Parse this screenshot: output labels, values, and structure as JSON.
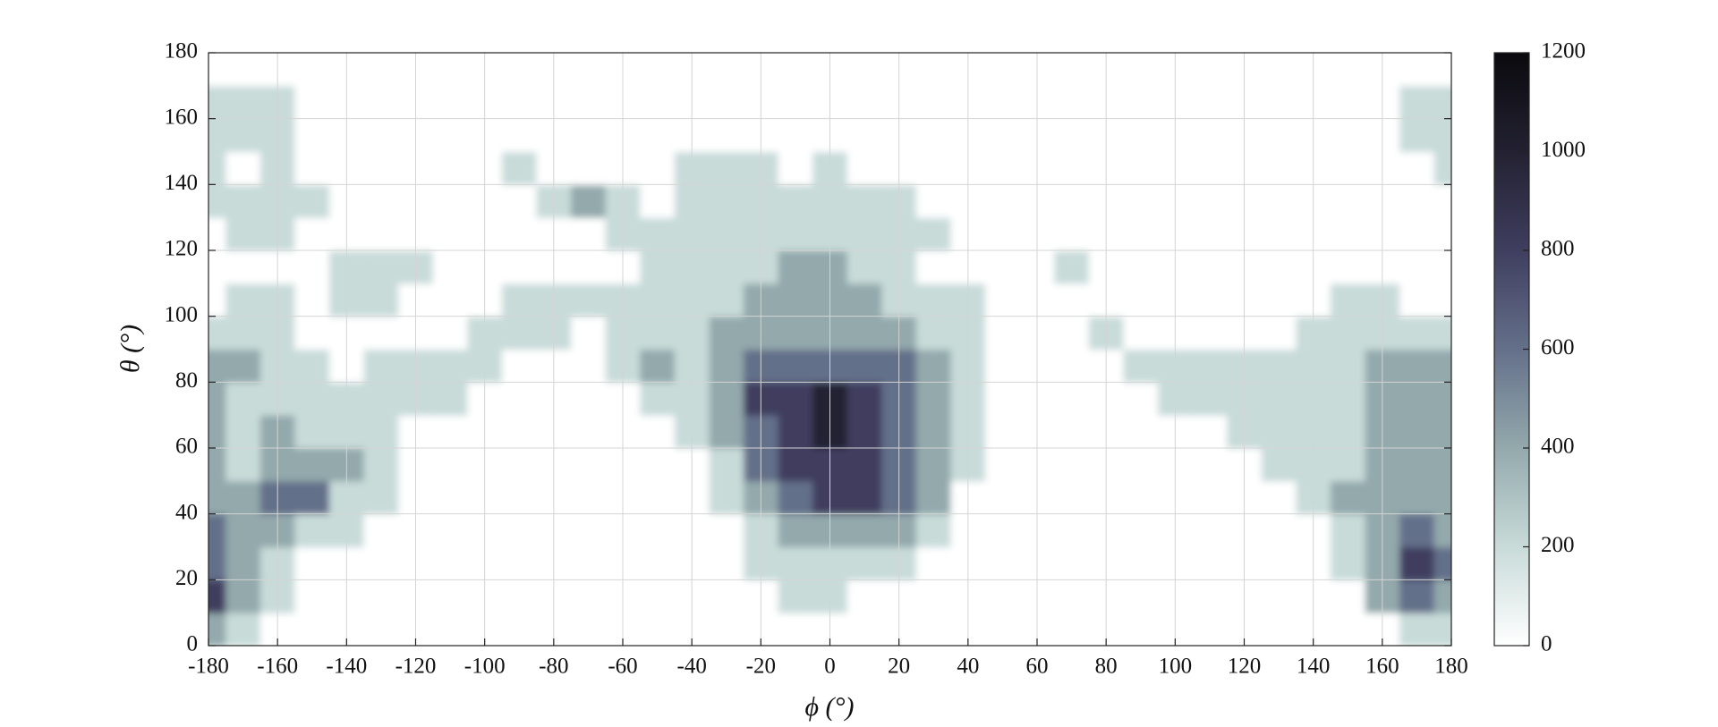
{
  "chart_data": {
    "type": "contourf",
    "x_label": "ϕ (°)",
    "y_label": "θ (°)",
    "x": [
      -180,
      -170,
      -160,
      -150,
      -140,
      -130,
      -120,
      -110,
      -100,
      -90,
      -80,
      -70,
      -60,
      -50,
      -40,
      -30,
      -20,
      -10,
      0,
      10,
      20,
      30,
      40,
      50,
      60,
      70,
      80,
      90,
      100,
      110,
      120,
      130,
      140,
      150,
      160,
      170,
      180
    ],
    "y": [
      5,
      15,
      25,
      35,
      45,
      55,
      65,
      75,
      85,
      95,
      105,
      115,
      125,
      135,
      145,
      155,
      165,
      175
    ],
    "z": [
      [
        450,
        250,
        0,
        0,
        0,
        0,
        0,
        0,
        0,
        0,
        0,
        0,
        0,
        0,
        0,
        0,
        0,
        0,
        0,
        0,
        0,
        0,
        0,
        0,
        0,
        0,
        0,
        0,
        0,
        0,
        0,
        0,
        0,
        0,
        0,
        250,
        250
      ],
      [
        850,
        450,
        250,
        0,
        0,
        0,
        0,
        0,
        0,
        0,
        0,
        0,
        0,
        0,
        0,
        0,
        0,
        250,
        250,
        0,
        0,
        0,
        0,
        0,
        0,
        0,
        0,
        0,
        0,
        0,
        0,
        0,
        0,
        0,
        450,
        650,
        450
      ],
      [
        650,
        450,
        250,
        0,
        0,
        0,
        0,
        0,
        0,
        0,
        0,
        0,
        0,
        0,
        0,
        0,
        250,
        250,
        250,
        250,
        250,
        0,
        0,
        0,
        0,
        0,
        0,
        0,
        0,
        0,
        0,
        0,
        0,
        250,
        450,
        850,
        650
      ],
      [
        650,
        450,
        450,
        250,
        250,
        0,
        0,
        0,
        0,
        0,
        0,
        0,
        0,
        0,
        0,
        0,
        250,
        450,
        450,
        450,
        450,
        250,
        0,
        0,
        0,
        0,
        0,
        0,
        0,
        0,
        0,
        0,
        0,
        250,
        450,
        650,
        450
      ],
      [
        450,
        450,
        650,
        650,
        250,
        250,
        0,
        0,
        0,
        0,
        0,
        0,
        0,
        0,
        0,
        250,
        450,
        650,
        850,
        850,
        650,
        450,
        0,
        0,
        0,
        0,
        0,
        0,
        0,
        0,
        0,
        0,
        250,
        450,
        450,
        450,
        450
      ],
      [
        450,
        250,
        450,
        450,
        450,
        250,
        0,
        0,
        0,
        0,
        0,
        0,
        0,
        0,
        0,
        250,
        650,
        850,
        850,
        850,
        650,
        450,
        250,
        0,
        0,
        0,
        0,
        0,
        0,
        0,
        0,
        250,
        250,
        250,
        450,
        450,
        450
      ],
      [
        450,
        250,
        450,
        250,
        250,
        250,
        0,
        0,
        0,
        0,
        0,
        0,
        0,
        0,
        250,
        450,
        650,
        850,
        1050,
        850,
        650,
        450,
        250,
        0,
        0,
        0,
        0,
        0,
        0,
        0,
        250,
        250,
        250,
        250,
        450,
        450,
        450
      ],
      [
        450,
        250,
        250,
        250,
        250,
        250,
        250,
        250,
        0,
        0,
        0,
        0,
        0,
        250,
        250,
        450,
        850,
        850,
        1050,
        850,
        650,
        450,
        250,
        0,
        0,
        0,
        0,
        0,
        250,
        250,
        250,
        250,
        250,
        250,
        450,
        450,
        450
      ],
      [
        450,
        450,
        250,
        250,
        0,
        250,
        250,
        250,
        250,
        0,
        0,
        0,
        250,
        450,
        250,
        450,
        650,
        650,
        650,
        650,
        650,
        450,
        250,
        0,
        0,
        0,
        0,
        250,
        250,
        250,
        250,
        250,
        250,
        250,
        450,
        450,
        450
      ],
      [
        250,
        250,
        250,
        0,
        0,
        0,
        0,
        0,
        250,
        250,
        250,
        0,
        250,
        250,
        250,
        450,
        450,
        450,
        450,
        450,
        450,
        250,
        250,
        0,
        0,
        0,
        250,
        0,
        0,
        0,
        0,
        0,
        250,
        250,
        250,
        250,
        250
      ],
      [
        0,
        250,
        250,
        0,
        250,
        250,
        0,
        0,
        0,
        250,
        250,
        250,
        250,
        250,
        250,
        250,
        450,
        450,
        450,
        450,
        250,
        250,
        250,
        0,
        0,
        0,
        0,
        0,
        0,
        0,
        0,
        0,
        0,
        250,
        250,
        0,
        0
      ],
      [
        0,
        0,
        0,
        0,
        250,
        250,
        250,
        0,
        0,
        0,
        0,
        0,
        0,
        250,
        250,
        250,
        250,
        450,
        450,
        250,
        250,
        0,
        0,
        0,
        0,
        250,
        0,
        0,
        0,
        0,
        0,
        0,
        0,
        0,
        0,
        0,
        0
      ],
      [
        0,
        250,
        250,
        0,
        0,
        0,
        0,
        0,
        0,
        0,
        0,
        0,
        250,
        250,
        250,
        250,
        250,
        250,
        250,
        250,
        250,
        250,
        0,
        0,
        0,
        0,
        0,
        0,
        0,
        0,
        0,
        0,
        0,
        0,
        0,
        0,
        0
      ],
      [
        250,
        250,
        250,
        250,
        0,
        0,
        0,
        0,
        0,
        0,
        250,
        450,
        250,
        0,
        250,
        250,
        250,
        250,
        250,
        250,
        250,
        0,
        0,
        0,
        0,
        0,
        0,
        0,
        0,
        0,
        0,
        0,
        0,
        0,
        0,
        0,
        0
      ],
      [
        250,
        0,
        250,
        0,
        0,
        0,
        0,
        0,
        0,
        250,
        0,
        0,
        0,
        0,
        250,
        250,
        250,
        0,
        250,
        0,
        0,
        0,
        0,
        0,
        0,
        0,
        0,
        0,
        0,
        0,
        0,
        0,
        0,
        0,
        0,
        0,
        250
      ],
      [
        250,
        250,
        250,
        0,
        0,
        0,
        0,
        0,
        0,
        0,
        0,
        0,
        0,
        0,
        0,
        0,
        0,
        0,
        0,
        0,
        0,
        0,
        0,
        0,
        0,
        0,
        0,
        0,
        0,
        0,
        0,
        0,
        0,
        0,
        0,
        250,
        250
      ],
      [
        250,
        250,
        250,
        0,
        0,
        0,
        0,
        0,
        0,
        0,
        0,
        0,
        0,
        0,
        0,
        0,
        0,
        0,
        0,
        0,
        0,
        0,
        0,
        0,
        0,
        0,
        0,
        0,
        0,
        0,
        0,
        0,
        0,
        0,
        0,
        250,
        250
      ],
      [
        0,
        0,
        0,
        0,
        0,
        0,
        0,
        0,
        0,
        0,
        0,
        0,
        0,
        0,
        0,
        0,
        0,
        0,
        0,
        0,
        0,
        0,
        0,
        0,
        0,
        0,
        0,
        0,
        0,
        0,
        0,
        0,
        0,
        0,
        0,
        0,
        0
      ]
    ],
    "xlim": [
      -180,
      180
    ],
    "xticks": [
      -180,
      -160,
      -140,
      -120,
      -100,
      -80,
      -60,
      -40,
      -20,
      0,
      20,
      40,
      60,
      80,
      100,
      120,
      140,
      160,
      180
    ],
    "ylim": [
      0,
      180
    ],
    "yticks": [
      0,
      20,
      40,
      60,
      80,
      100,
      120,
      140,
      160,
      180
    ],
    "grid": true,
    "levels": [
      0,
      200,
      400,
      600,
      800,
      1000,
      1200
    ],
    "colors": [
      "#ffffff",
      "#c8dbd9",
      "#93a9ac",
      "#64708a",
      "#3f3e5f",
      "#232131",
      "#0a0a0e"
    ],
    "colorbar_ticks": [
      0,
      200,
      400,
      600,
      800,
      1000,
      1200
    ]
  }
}
